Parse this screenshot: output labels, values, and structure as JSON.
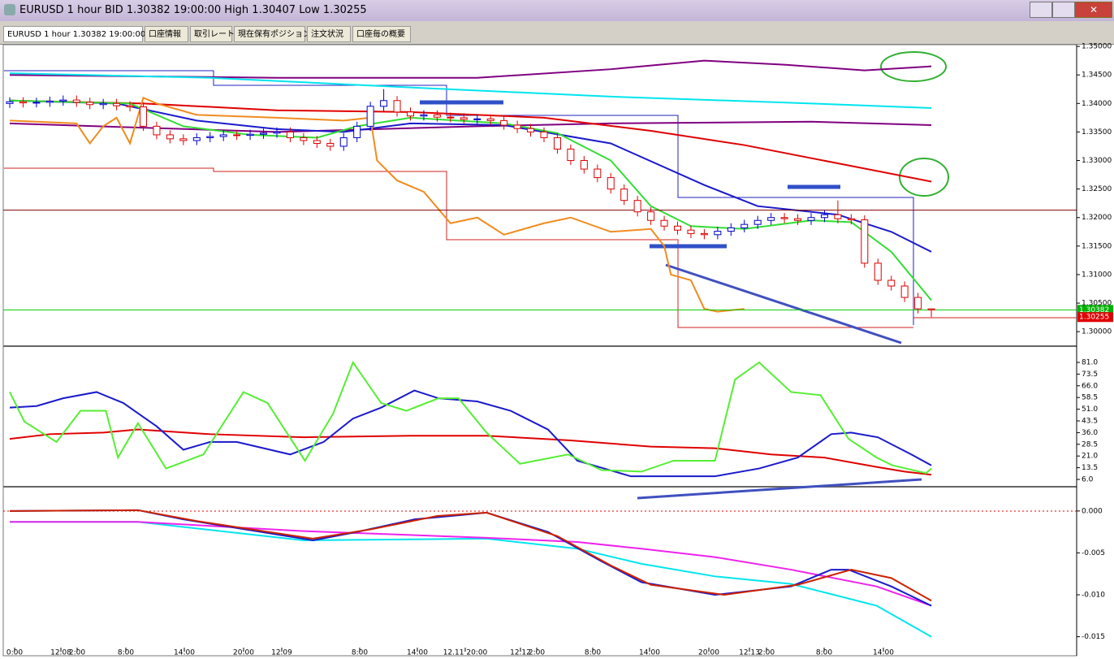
{
  "window": {
    "title": "EURUSD 1 hour BID 1.30382 19:00:00 High 1.30407 Low 1.30255"
  },
  "tabs": [
    "EURUSD 1 hour 1.30382 19:00:00",
    "口座情報",
    "取引レート",
    "現在保有ポジション",
    "注文状況",
    "口座毎の概要"
  ],
  "chart_data": [
    {
      "type": "candlestick",
      "open": [
        1.34,
        1.3403,
        1.3401,
        1.3402,
        1.3404,
        1.3406,
        1.3402,
        1.3398,
        1.34,
        1.3396,
        1.3394,
        1.336,
        1.3345,
        1.3338,
        1.3335,
        1.334,
        1.3342,
        1.3345,
        1.3344,
        1.3346,
        1.3348,
        1.335,
        1.334,
        1.3335,
        1.333,
        1.3325,
        1.334,
        1.336,
        1.3395,
        1.3405,
        1.3385,
        1.3378,
        1.338,
        1.3376,
        1.3375,
        1.3372,
        1.3373,
        1.337,
        1.3362,
        1.3356,
        1.335,
        1.334,
        1.332,
        1.33,
        1.3285,
        1.327,
        1.325,
        1.323,
        1.321,
        1.3195,
        1.3185,
        1.3178,
        1.3172,
        1.317,
        1.3176,
        1.3182,
        1.3188,
        1.3195,
        1.32,
        1.3198,
        1.3195,
        1.32,
        1.3205,
        1.3198,
        1.3196,
        1.312,
        1.309,
        1.308,
        1.306,
        1.304
      ],
      "high": [
        1.3411,
        1.3411,
        1.341,
        1.3412,
        1.3414,
        1.3414,
        1.341,
        1.3408,
        1.3408,
        1.3404,
        1.3402,
        1.3368,
        1.3353,
        1.3346,
        1.3348,
        1.335,
        1.3353,
        1.3353,
        1.3354,
        1.3356,
        1.3358,
        1.3358,
        1.3348,
        1.3343,
        1.3338,
        1.3348,
        1.3368,
        1.3403,
        1.3425,
        1.3413,
        1.3393,
        1.3388,
        1.3388,
        1.3384,
        1.3383,
        1.3381,
        1.3381,
        1.3378,
        1.337,
        1.3364,
        1.3358,
        1.3348,
        1.3328,
        1.3308,
        1.3293,
        1.3278,
        1.3258,
        1.3238,
        1.3218,
        1.3203,
        1.3193,
        1.3186,
        1.318,
        1.3184,
        1.319,
        1.3196,
        1.3203,
        1.3208,
        1.3208,
        1.3206,
        1.3208,
        1.3213,
        1.323,
        1.3206,
        1.3204,
        1.3128,
        1.3098,
        1.3088,
        1.3068,
        1.30407
      ],
      "low": [
        1.3392,
        1.3393,
        1.3393,
        1.3394,
        1.3396,
        1.3394,
        1.339,
        1.339,
        1.3388,
        1.3386,
        1.3352,
        1.3337,
        1.333,
        1.3327,
        1.3327,
        1.3332,
        1.3334,
        1.3336,
        1.3336,
        1.3338,
        1.334,
        1.3332,
        1.3327,
        1.3322,
        1.3317,
        1.3317,
        1.3332,
        1.3352,
        1.3387,
        1.3377,
        1.337,
        1.337,
        1.3368,
        1.3367,
        1.3364,
        1.3364,
        1.3362,
        1.3354,
        1.3348,
        1.3342,
        1.3332,
        1.3312,
        1.3292,
        1.3277,
        1.3262,
        1.3242,
        1.3222,
        1.3202,
        1.3187,
        1.3177,
        1.317,
        1.3164,
        1.3162,
        1.3162,
        1.3168,
        1.3174,
        1.318,
        1.3187,
        1.319,
        1.3187,
        1.3187,
        1.3192,
        1.319,
        1.3188,
        1.3112,
        1.3082,
        1.3072,
        1.3052,
        1.3032,
        1.30255
      ],
      "close": [
        1.3403,
        1.3401,
        1.3402,
        1.3404,
        1.3406,
        1.3402,
        1.3398,
        1.34,
        1.3396,
        1.3394,
        1.336,
        1.3345,
        1.3338,
        1.3335,
        1.334,
        1.3342,
        1.3345,
        1.3344,
        1.3346,
        1.3348,
        1.335,
        1.334,
        1.3335,
        1.333,
        1.3325,
        1.334,
        1.336,
        1.3395,
        1.3405,
        1.3385,
        1.3378,
        1.338,
        1.3376,
        1.3375,
        1.3372,
        1.3373,
        1.337,
        1.3362,
        1.3356,
        1.335,
        1.334,
        1.332,
        1.33,
        1.3285,
        1.327,
        1.325,
        1.323,
        1.321,
        1.3195,
        1.3185,
        1.3178,
        1.3172,
        1.317,
        1.3176,
        1.3182,
        1.3188,
        1.3195,
        1.32,
        1.3198,
        1.3195,
        1.32,
        1.3205,
        1.3198,
        1.3196,
        1.312,
        1.309,
        1.308,
        1.306,
        1.304,
        1.30382
      ],
      "up_color": "#0000cc",
      "down_color": "#dd0000",
      "ylim": [
        1.2976,
        1.3503
      ],
      "yticks": [
        {
          "value": 1.35,
          "label": "1.35000"
        },
        {
          "value": 1.345,
          "label": "1.34500"
        },
        {
          "value": 1.34,
          "label": "1.34000"
        },
        {
          "value": 1.335,
          "label": "1.33500"
        },
        {
          "value": 1.33,
          "label": "1.33000"
        },
        {
          "value": 1.325,
          "label": "1.32500"
        },
        {
          "value": 1.32,
          "label": "1.32000"
        },
        {
          "value": 1.315,
          "label": "1.31500"
        },
        {
          "value": 1.31,
          "label": "1.31000"
        },
        {
          "value": 1.305,
          "label": "1.30500"
        },
        {
          "value": 1.3,
          "label": "1.30000"
        }
      ],
      "series": [
        {
          "color": "#800080",
          "x": [
            0,
            20,
            35,
            45,
            52,
            58,
            64,
            69
          ],
          "values": [
            1.345,
            1.3445,
            1.3445,
            1.346,
            1.3475,
            1.3468,
            1.3458,
            1.3465
          ]
        },
        {
          "color": "#800080",
          "x": [
            0,
            20,
            35,
            45,
            60,
            69
          ],
          "values": [
            1.3365,
            1.335,
            1.336,
            1.3365,
            1.3368,
            1.3362
          ]
        },
        {
          "color": "#00e5ee",
          "x": [
            0,
            15,
            30,
            45,
            60,
            69
          ],
          "values": [
            1.3453,
            1.3445,
            1.3428,
            1.3412,
            1.34,
            1.3392
          ]
        },
        {
          "color": "#e00000",
          "x": [
            0,
            10,
            20,
            30,
            40,
            48,
            55,
            62,
            69
          ],
          "values": [
            1.3405,
            1.34,
            1.3388,
            1.3385,
            1.3375,
            1.3352,
            1.3327,
            1.3295,
            1.3263
          ]
        },
        {
          "color": "#1a1acc",
          "x": [
            0,
            8,
            14,
            20,
            25,
            30,
            37,
            45,
            52,
            56,
            62,
            66,
            69
          ],
          "values": [
            1.3405,
            1.34,
            1.337,
            1.3355,
            1.335,
            1.3365,
            1.3362,
            1.333,
            1.3257,
            1.322,
            1.3205,
            1.3175,
            1.314
          ]
        },
        {
          "color": "#33dd33",
          "x": [
            0,
            9,
            13,
            18,
            23,
            26,
            30,
            37,
            41,
            45,
            48,
            51,
            55,
            60,
            63,
            66,
            69
          ],
          "values": [
            1.3405,
            1.34,
            1.336,
            1.3345,
            1.334,
            1.336,
            1.3375,
            1.3365,
            1.3348,
            1.33,
            1.322,
            1.3185,
            1.318,
            1.3195,
            1.3192,
            1.314,
            1.3055
          ]
        },
        {
          "color": "#f08c1e",
          "x": [
            0,
            5,
            6,
            7,
            8,
            9,
            10,
            11,
            14,
            20,
            25,
            27,
            27.5,
            29,
            31,
            33,
            35,
            37,
            40,
            42,
            45,
            48,
            49,
            49.5,
            51,
            52,
            53,
            55
          ],
          "values": [
            1.337,
            1.3365,
            1.333,
            1.336,
            1.3375,
            1.333,
            1.341,
            1.34,
            1.338,
            1.3375,
            1.337,
            1.3375,
            1.33,
            1.3265,
            1.3245,
            1.319,
            1.32,
            1.317,
            1.319,
            1.32,
            1.3175,
            1.318,
            1.315,
            1.31,
            1.309,
            1.304,
            1.3035,
            1.304
          ]
        }
      ],
      "hlines": [
        {
          "value": 1.3213,
          "color": "#800000"
        },
        {
          "value": 1.30382,
          "color": "#00cc00"
        }
      ],
      "price_tags": [
        {
          "value": 1.30382,
          "color": "#00b000"
        },
        {
          "value": 1.30255,
          "color": "#e00000"
        }
      ]
    },
    {
      "type": "line",
      "ylim": [
        2.35,
        89.85
      ],
      "yticks": [
        {
          "value": 81,
          "label": "81.0"
        },
        {
          "value": 73.5,
          "label": "73.5"
        },
        {
          "value": 66,
          "label": "66.0"
        },
        {
          "value": 58.5,
          "label": "58.5"
        },
        {
          "value": 51,
          "label": "51.0"
        },
        {
          "value": 43.5,
          "label": "43.5"
        },
        {
          "value": 36,
          "label": "36.0"
        },
        {
          "value": 28.5,
          "label": "28.5"
        },
        {
          "value": 21,
          "label": "21.0"
        },
        {
          "value": 13.5,
          "label": "13.5"
        },
        {
          "value": 6,
          "label": "6.0"
        }
      ],
      "series": [
        {
          "color": "#e00000",
          "x": [
            0,
            3,
            7,
            9.6,
            15,
            22,
            30,
            35.7,
            42,
            48,
            52.8,
            57,
            61,
            64.9,
            67,
            69
          ],
          "values": [
            32,
            35,
            36,
            38,
            35,
            33,
            34,
            34,
            31,
            27,
            26,
            22,
            20,
            14,
            11,
            9
          ]
        },
        {
          "color": "#1a1acc",
          "x": [
            0,
            2,
            4,
            6.5,
            8.5,
            11,
            13,
            15,
            17,
            21,
            23.5,
            25.7,
            27.8,
            30.3,
            32.1,
            35,
            37.5,
            40.3,
            42.5,
            44.5,
            46.5,
            49.7,
            52.8,
            56.1,
            59,
            61.5,
            63,
            65,
            67.5,
            69
          ],
          "values": [
            52,
            53,
            58,
            62,
            55,
            40,
            25,
            30,
            30,
            22,
            30,
            45,
            52,
            63,
            58,
            56,
            50,
            38,
            18,
            13,
            8,
            8,
            8,
            13,
            20,
            35,
            36,
            33,
            22,
            15
          ]
        },
        {
          "color": "#55ee33",
          "x": [
            0,
            1.1,
            3.5,
            5.3,
            7.2,
            8.1,
            9.6,
            11.7,
            14.5,
            17.5,
            19.3,
            22.1,
            24.2,
            25.7,
            27.8,
            29.7,
            32.1,
            33.6,
            35.7,
            38.2,
            41.8,
            44.3,
            47.3,
            49.7,
            52.8,
            54.3,
            56.1,
            58.5,
            60.7,
            62.8,
            64.9,
            66.1,
            68.6,
            69
          ],
          "values": [
            62,
            43,
            30,
            50,
            50,
            20,
            42,
            13,
            22,
            62,
            55,
            18,
            48,
            81,
            55,
            50,
            58,
            58,
            36,
            16,
            22,
            12,
            11,
            18,
            18,
            70,
            81,
            62,
            60,
            32,
            20,
            15,
            10,
            13
          ]
        }
      ]
    },
    {
      "type": "line",
      "ylim": [
        -0.0163,
        0.0027
      ],
      "yticks": [
        {
          "value": 0,
          "label": "0.000"
        },
        -0.005,
        {
          "value": -0.01,
          "label": "-0.010"
        },
        -0.015
      ],
      "series": [
        {
          "color": "#00e5ee",
          "x": [
            0,
            9.6,
            22,
            35.7,
            42.5,
            47.3,
            52.8,
            58.5,
            64.9,
            69
          ],
          "values": [
            -0.0013,
            -0.0013,
            -0.0035,
            -0.0033,
            -0.0045,
            -0.0063,
            -0.0078,
            -0.0087,
            -0.0113,
            -0.015
          ]
        },
        {
          "color": "#ee22ee",
          "x": [
            0,
            9.6,
            22,
            35.7,
            42.5,
            47.3,
            52.8,
            58.5,
            64.9,
            69
          ],
          "values": [
            -0.0013,
            -0.0013,
            -0.0024,
            -0.0032,
            -0.0037,
            -0.0045,
            -0.0055,
            -0.007,
            -0.009,
            -0.0113
          ]
        },
        {
          "color": "#1a1acc",
          "x": [
            0,
            9.6,
            13,
            22.7,
            26,
            30.3,
            35.7,
            40.3,
            44.3,
            47.3,
            52.8,
            58.5,
            61.5,
            62.8,
            66,
            69
          ],
          "values": [
            0,
            0.0001,
            -0.001,
            -0.0035,
            -0.0025,
            -0.001,
            -0.0002,
            -0.0025,
            -0.006,
            -0.0085,
            -0.01,
            -0.009,
            -0.007,
            -0.007,
            -0.009,
            -0.0113
          ]
        },
        {
          "color": "#cc2200",
          "x": [
            0,
            9.6,
            14,
            22.7,
            27,
            32,
            35.7,
            41,
            45,
            48,
            53.5,
            59,
            63,
            66,
            69
          ],
          "values": [
            0,
            0.0001,
            -0.0012,
            -0.0033,
            -0.0022,
            -0.0006,
            -0.0002,
            -0.003,
            -0.0065,
            -0.0088,
            -0.01,
            -0.0088,
            -0.007,
            -0.008,
            -0.0107
          ]
        }
      ],
      "x_labels": [
        "0:00",
        "12.08",
        "2:00",
        "8:00",
        "14:00",
        "20:00",
        "12.09",
        "8:00",
        "14:00",
        "12.11 20:00",
        "12.12",
        "2:00",
        "8:00",
        "14:00",
        "20:00",
        "12.13",
        "2:00",
        "8:00",
        "14:00"
      ]
    }
  ]
}
